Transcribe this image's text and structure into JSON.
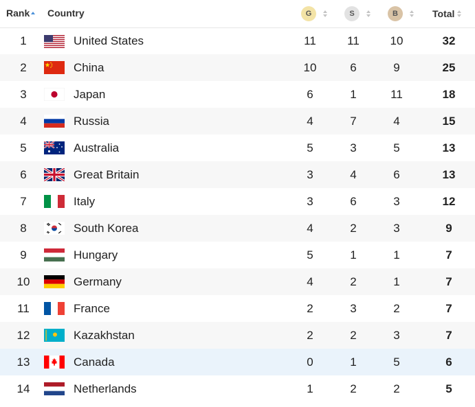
{
  "header": {
    "rank": "Rank",
    "country": "Country",
    "gold": "G",
    "silver": "S",
    "bronze": "B",
    "total": "Total"
  },
  "rows": [
    {
      "rank": "1",
      "country": "United States",
      "flag": "flag-usa-icon",
      "g": "11",
      "s": "11",
      "b": "10",
      "total": "32"
    },
    {
      "rank": "2",
      "country": "China",
      "flag": "flag-china-icon",
      "g": "10",
      "s": "6",
      "b": "9",
      "total": "25"
    },
    {
      "rank": "3",
      "country": "Japan",
      "flag": "flag-japan-icon",
      "g": "6",
      "s": "1",
      "b": "11",
      "total": "18"
    },
    {
      "rank": "4",
      "country": "Russia",
      "flag": "flag-russia-icon",
      "g": "4",
      "s": "7",
      "b": "4",
      "total": "15"
    },
    {
      "rank": "5",
      "country": "Australia",
      "flag": "flag-australia-icon",
      "g": "5",
      "s": "3",
      "b": "5",
      "total": "13"
    },
    {
      "rank": "6",
      "country": "Great Britain",
      "flag": "flag-great-britain-icon",
      "g": "3",
      "s": "4",
      "b": "6",
      "total": "13"
    },
    {
      "rank": "7",
      "country": "Italy",
      "flag": "flag-italy-icon",
      "g": "3",
      "s": "6",
      "b": "3",
      "total": "12"
    },
    {
      "rank": "8",
      "country": "South Korea",
      "flag": "flag-south-korea-icon",
      "g": "4",
      "s": "2",
      "b": "3",
      "total": "9"
    },
    {
      "rank": "9",
      "country": "Hungary",
      "flag": "flag-hungary-icon",
      "g": "5",
      "s": "1",
      "b": "1",
      "total": "7"
    },
    {
      "rank": "10",
      "country": "Germany",
      "flag": "flag-germany-icon",
      "g": "4",
      "s": "2",
      "b": "1",
      "total": "7"
    },
    {
      "rank": "11",
      "country": "France",
      "flag": "flag-france-icon",
      "g": "2",
      "s": "3",
      "b": "2",
      "total": "7"
    },
    {
      "rank": "12",
      "country": "Kazakhstan",
      "flag": "flag-kazakhstan-icon",
      "g": "2",
      "s": "2",
      "b": "3",
      "total": "7"
    },
    {
      "rank": "13",
      "country": "Canada",
      "flag": "flag-canada-icon",
      "g": "0",
      "s": "1",
      "b": "5",
      "total": "6"
    },
    {
      "rank": "14",
      "country": "Netherlands",
      "flag": "flag-netherlands-icon",
      "g": "1",
      "s": "2",
      "b": "2",
      "total": "5"
    }
  ],
  "colors": {
    "gold_badge": "#f3e3a6",
    "silver_badge": "#e2e2e2",
    "bronze_badge": "#d9c3a6",
    "row_alt": "#f7f7f7",
    "row_highlight": "#eaf3fb",
    "sort_active": "#4a90d9"
  }
}
